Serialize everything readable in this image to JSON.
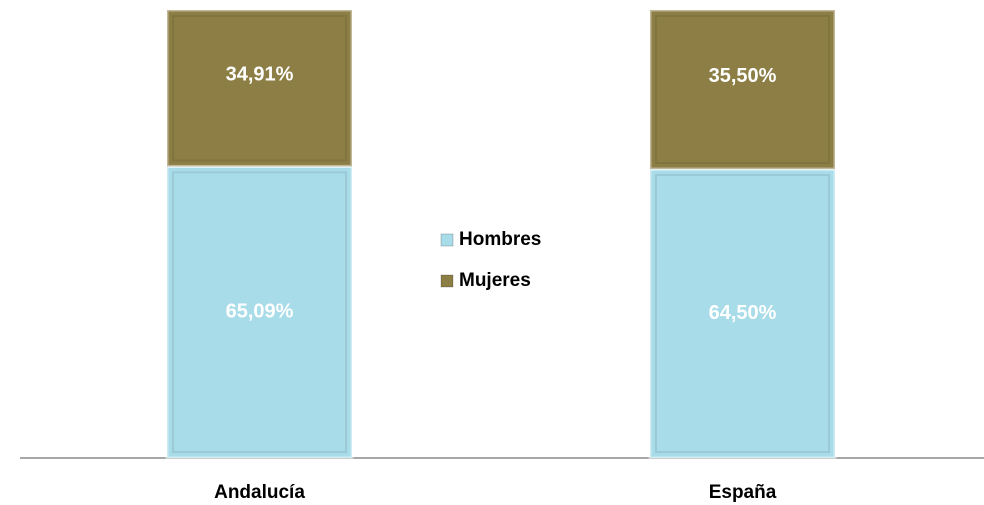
{
  "chart_data": {
    "type": "stacked_bar",
    "categories": [
      "Andalucía",
      "España"
    ],
    "series": [
      {
        "name": "Hombres",
        "color": "#a9dce9",
        "values": [
          65.09,
          64.5
        ],
        "value_labels": [
          "65,09%",
          "64,50%"
        ]
      },
      {
        "name": "Mujeres",
        "color": "#8c7e45",
        "values": [
          34.91,
          35.5
        ],
        "value_labels": [
          "34,91%",
          "35,50%"
        ]
      }
    ],
    "legend": "center"
  }
}
